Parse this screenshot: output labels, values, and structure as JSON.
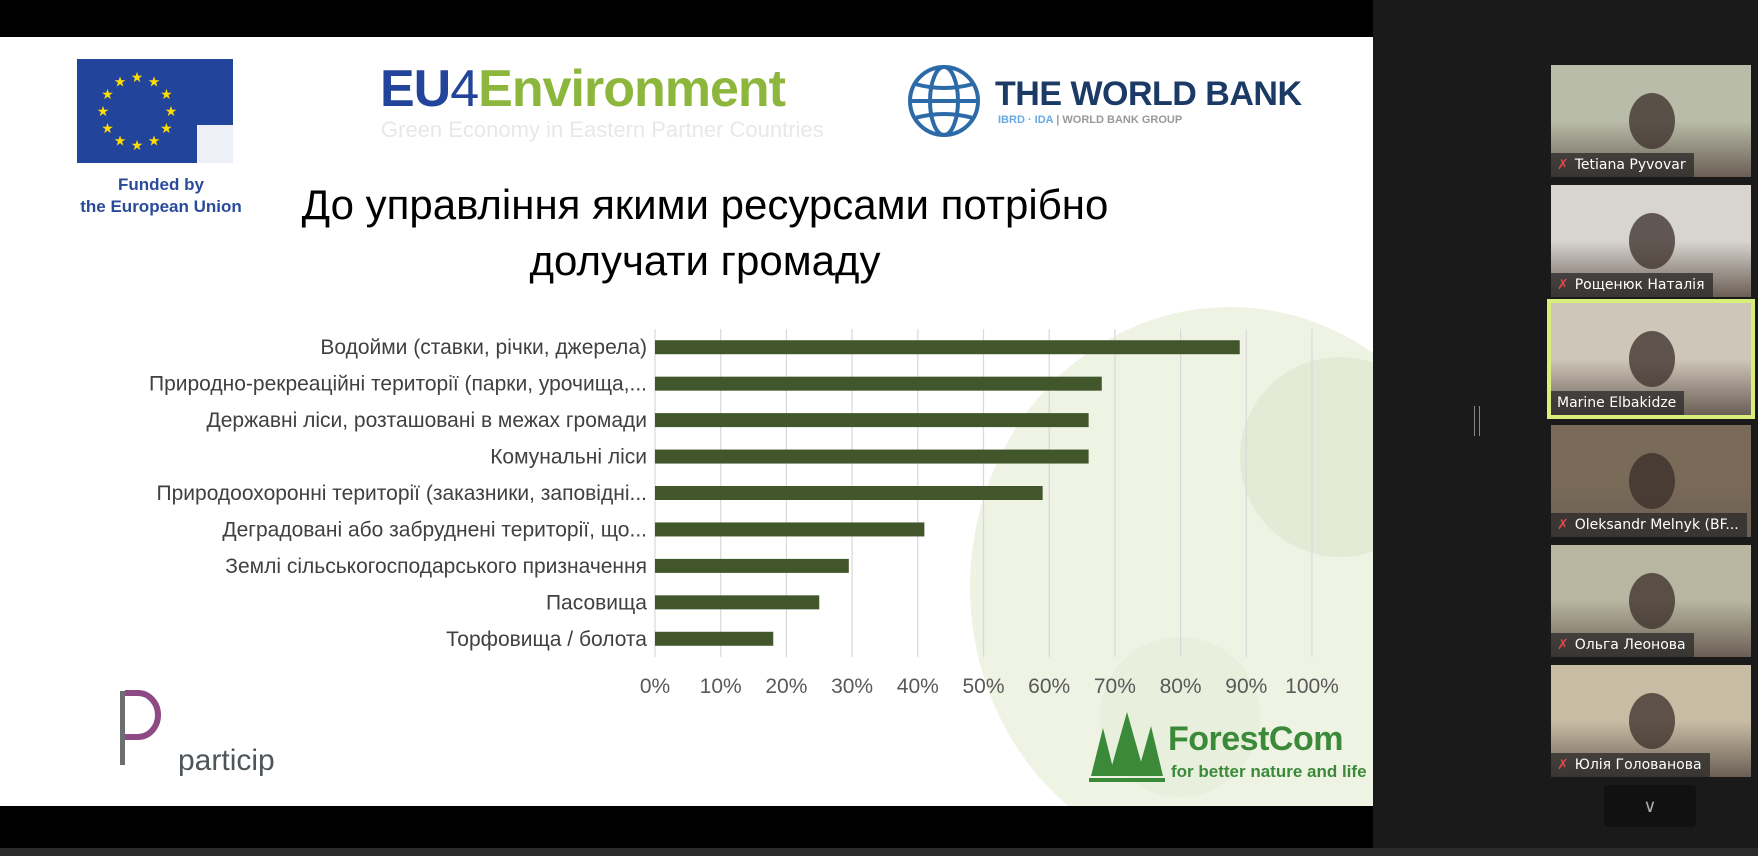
{
  "slide": {
    "title_line1": "До управління якими ресурсами потрібно",
    "title_line2": "долучати громаду",
    "logos": {
      "eu_funded_line1": "Funded by",
      "eu_funded_line2": "the European Union",
      "eu4_part1": "EU",
      "eu4_part2": "4",
      "eu4_part3": "Environment",
      "eu4_subtitle": "Green Economy in Eastern Partner Countries",
      "world_bank": "THE WORLD BANK",
      "world_bank_sub1": "IBRD · IDA",
      "world_bank_sub2": "| WORLD BANK GROUP",
      "particip": "particip",
      "forestcom": "ForestCom",
      "forestcom_tagline": "for better nature and life"
    }
  },
  "chart_data": {
    "type": "bar",
    "orientation": "horizontal",
    "categories": [
      "Водойми (ставки, річки, джерела)",
      "Природно-рекреаційні території (парки, урочища,...",
      "Державні ліси, розташовані в межах громади",
      "Комунальні ліси",
      "Природоохоронні території (заказники, заповідні...",
      "Деградовані або забруднені території, що...",
      "Землі сільськогосподарського призначення",
      "Пасовища",
      "Торфовища / болота"
    ],
    "values": [
      89,
      68,
      66,
      66,
      59,
      41,
      29.5,
      25,
      18
    ],
    "xlim": [
      0,
      100
    ],
    "ticks": [
      "0%",
      "10%",
      "20%",
      "30%",
      "40%",
      "50%",
      "60%",
      "70%",
      "80%",
      "90%",
      "100%"
    ],
    "grid": true,
    "bar_color": "#41562b",
    "legend": "none"
  },
  "participants": [
    {
      "name": "Tetiana Pyvovar",
      "muted": true,
      "active": false,
      "bg": "#b9bca8"
    },
    {
      "name": "Рощенюк Наталія",
      "muted": true,
      "active": false,
      "bg": "#d8d4d0"
    },
    {
      "name": "Marine Elbakidze",
      "muted": false,
      "active": true,
      "bg": "#cfc6ba"
    },
    {
      "name": "Oleksandr Melnyk (BF...",
      "muted": true,
      "active": false,
      "bg": "#7a6a58"
    },
    {
      "name": "Ольга Леонова",
      "muted": true,
      "active": false,
      "bg": "#b8b5a0"
    },
    {
      "name": "Юлія Голованова",
      "muted": true,
      "active": false,
      "bg": "#c9bca5"
    }
  ],
  "more_button_icon": "chevron-down-icon"
}
